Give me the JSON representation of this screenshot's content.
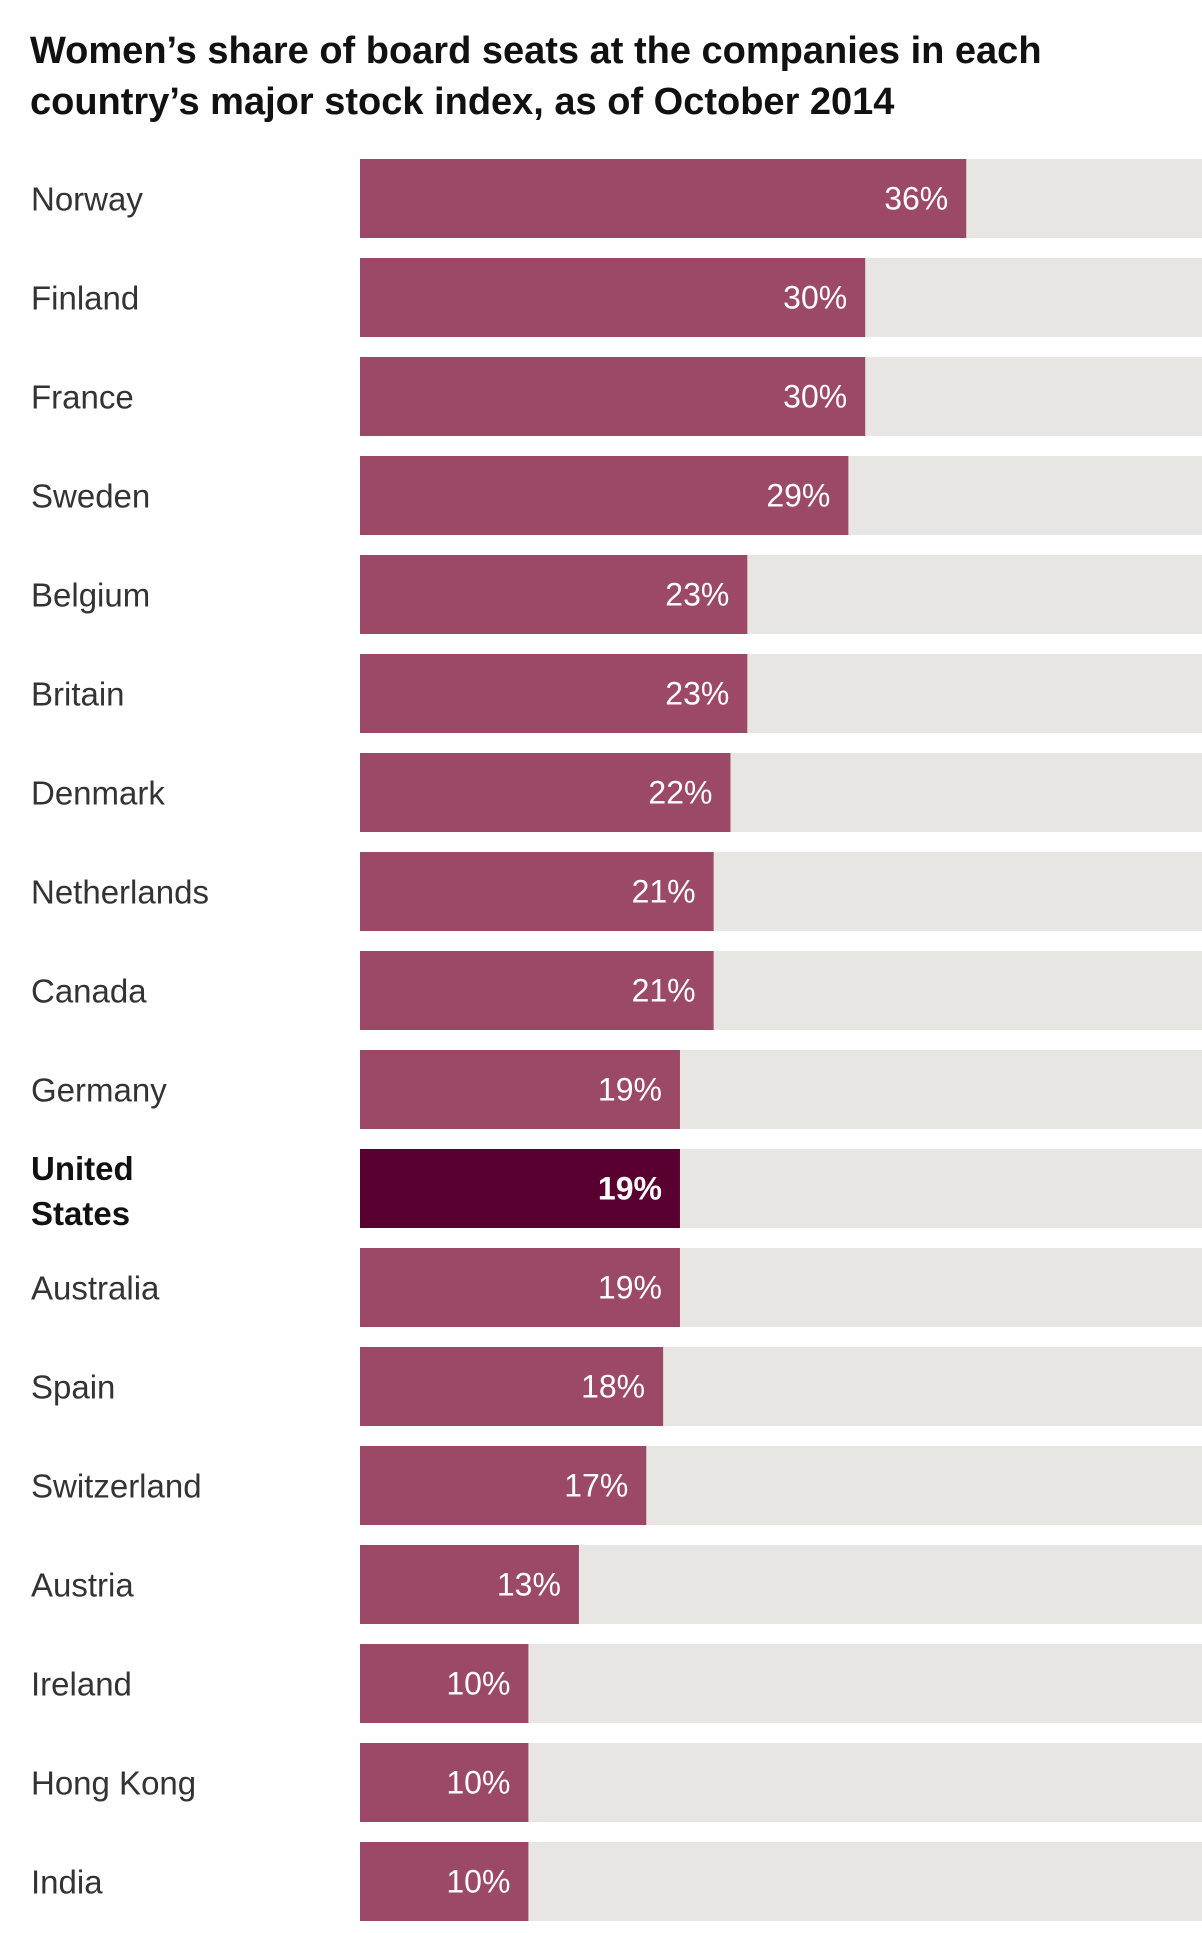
{
  "chart_data": {
    "type": "bar",
    "orientation": "horizontal",
    "title": "Women’s share of board seats at the companies in each country’s major stock index, as of October 2014",
    "categories": [
      "Norway",
      "Finland",
      "France",
      "Sweden",
      "Belgium",
      "Britain",
      "Denmark",
      "Netherlands",
      "Canada",
      "Germany",
      "United States",
      "Australia",
      "Spain",
      "Switzerland",
      "Austria",
      "Ireland",
      "Hong Kong",
      "India"
    ],
    "values": [
      36,
      30,
      30,
      29,
      23,
      23,
      22,
      21,
      21,
      19,
      19,
      19,
      18,
      17,
      13,
      10,
      10,
      10
    ],
    "value_labels": [
      "36%",
      "30%",
      "30%",
      "29%",
      "23%",
      "23%",
      "22%",
      "21%",
      "21%",
      "19%",
      "19%",
      "19%",
      "18%",
      "17%",
      "13%",
      "10%",
      "10%",
      "10%"
    ],
    "highlight": "United States",
    "xlim": [
      0,
      50
    ],
    "unit": "%",
    "grid": false,
    "legend": "none",
    "colors": {
      "bar": "#9c4867",
      "highlight_bar": "#5a0030",
      "track": "#e8e6e3",
      "value_text": "#ffffff",
      "label_text": "#333333"
    }
  }
}
